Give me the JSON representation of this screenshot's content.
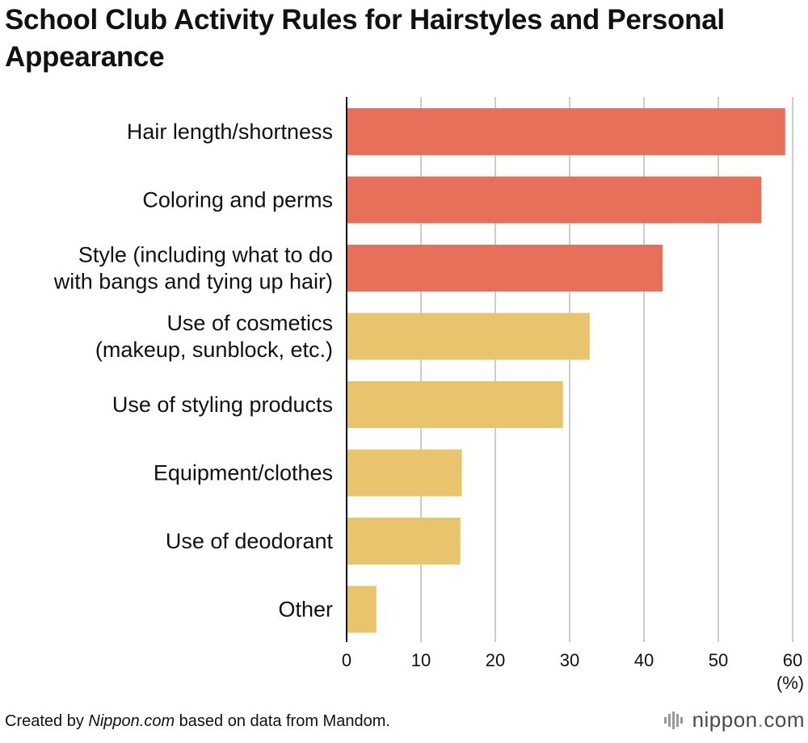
{
  "title": "School Club Activity Rules for Hairstyles and Personal Appearance",
  "colors": {
    "red": "#e8705a",
    "yellow": "#e8c46c",
    "grid": "#cccccc",
    "axis": "#111111"
  },
  "chart_data": {
    "type": "bar",
    "orientation": "horizontal",
    "categories": [
      [
        "Hair length/shortness"
      ],
      [
        "Coloring and perms"
      ],
      [
        "Style (including what to do",
        "with bangs and tying up hair)"
      ],
      [
        "Use of cosmetics",
        "(makeup, sunblock, etc.)"
      ],
      [
        "Use of styling products"
      ],
      [
        "Equipment/clothes"
      ],
      [
        "Use of deodorant"
      ],
      [
        "Other"
      ]
    ],
    "values": [
      59,
      55.8,
      42.5,
      32.7,
      29.1,
      15.5,
      15.3,
      4
    ],
    "bar_colors": [
      "red",
      "red",
      "red",
      "yellow",
      "yellow",
      "yellow",
      "yellow",
      "yellow"
    ],
    "xlim": [
      0,
      60
    ],
    "xticks": [
      0,
      10,
      20,
      30,
      40,
      50,
      60
    ],
    "unit": "(%)",
    "grid": true
  },
  "source": {
    "prefix": "Created by ",
    "italic": "Nippon.com",
    "suffix": " based on data from Mandom."
  },
  "brand": {
    "name": "nippon",
    "dot": ".",
    "tld": "com",
    "icon": "nippon-logo-icon"
  }
}
